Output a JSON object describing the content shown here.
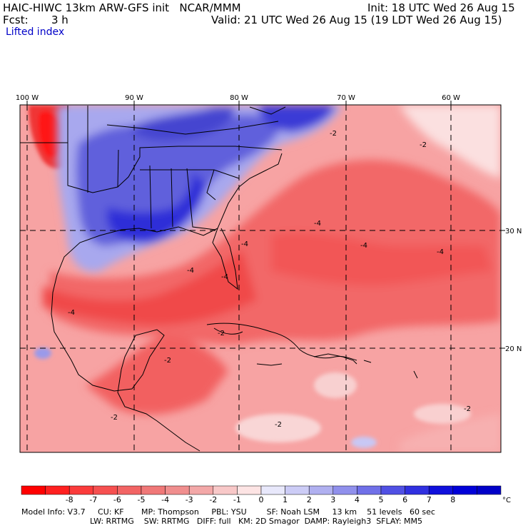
{
  "header": {
    "model_line": "HAIC-HIWC 13km ARW-GFS init   NCAR/MMM",
    "init_line": "Init: 18 UTC Wed 26 Aug 15",
    "fcst_label": "Fcst:",
    "fcst_value": "3 h",
    "valid_line": "Valid: 21 UTC Wed 26 Aug 15 (19 LDT Wed 26 Aug 15)",
    "field_name": "Lifted index"
  },
  "map": {
    "lon_labels": [
      "100 W",
      "90 W",
      "80 W",
      "70 W",
      "60 W"
    ],
    "lat_labels": [
      "30 N",
      "20 N"
    ],
    "contour_labels": [
      "-2",
      "-2",
      "-2",
      "-4",
      "-4",
      "-4",
      "-4",
      "-4",
      "-4",
      "-2",
      "-2",
      "-4",
      "-2",
      "-2"
    ],
    "colors": {
      "neg_strong": "#ff3030",
      "neg_mid": "#f56060",
      "neg_light": "#f8a0a0",
      "pos_light": "#c8c8f5",
      "pos_strong": "#2828e6"
    }
  },
  "colorbar": {
    "labels": [
      "-8",
      "-7",
      "-6",
      "-5",
      "-4",
      "-3",
      "-2",
      "-1",
      "0",
      "1",
      "2",
      "3",
      "4",
      "5",
      "6",
      "7",
      "8"
    ],
    "unit": "°C",
    "colors": [
      "#ff0000",
      "#ff2020",
      "#fb3b3b",
      "#f65050",
      "#f26464",
      "#f07878",
      "#f08e8e",
      "#f3a8a8",
      "#f8c8c8",
      "#fde4e4",
      "#e8e8fb",
      "#ccccf6",
      "#b0b0f0",
      "#9090ec",
      "#7070e8",
      "#5050e4",
      "#3030e0",
      "#1010dc",
      "#0000d8",
      "#0000c8"
    ]
  },
  "footer": {
    "line1": "Model Info: V3.7     CU: KF       MP: Thompson     PBL: YSU        SF: Noah LSM     13 km    51 levels   60 sec",
    "line2": "LW: RRTMG    SW: RRTMG   DIFF: full   KM: 2D Smagor  DAMP: Rayleigh3  SFLAY: MM5"
  }
}
